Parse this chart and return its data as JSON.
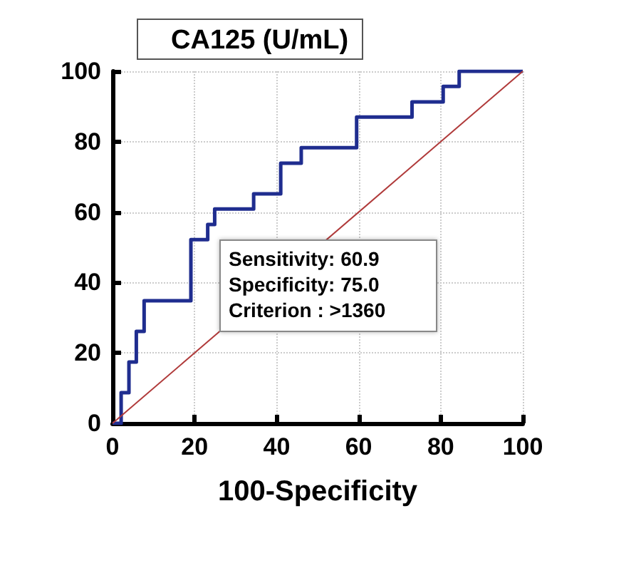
{
  "chart_data": {
    "type": "line",
    "title": "CA125 (U/mL)",
    "xlabel": "100-Specificity",
    "series": [
      {
        "color": "#1f2d8f",
        "line_style": "solid",
        "x": [
          0,
          2.1,
          2.1,
          4,
          4,
          5.8,
          5.8,
          7.7,
          7.7,
          19.1,
          19.1,
          23.2,
          23.2,
          24.9,
          24.9,
          34.4,
          34.4,
          41,
          41,
          46,
          46,
          59.5,
          59.5,
          73,
          73,
          80.6,
          80.6,
          84.5,
          84.5,
          100
        ],
        "values": [
          0,
          0,
          8.7,
          8.7,
          17.4,
          17.4,
          26.1,
          26.1,
          34.8,
          34.8,
          52.2,
          52.2,
          56.5,
          56.5,
          60.9,
          60.9,
          65.2,
          65.2,
          73.9,
          73.9,
          78.3,
          78.3,
          87,
          87,
          91.3,
          91.3,
          95.7,
          95.7,
          100,
          100
        ]
      },
      {
        "color": "#b03a3a",
        "line_style": "solid",
        "x": [
          0,
          100
        ],
        "values": [
          0,
          100
        ]
      }
    ],
    "annotations": [
      "Sensitivity: 60.9",
      "Specificity: 75.0",
      "Criterion : >1360"
    ],
    "xlim": [
      0,
      100
    ],
    "xticks": [
      0,
      20,
      40,
      60,
      80,
      100
    ],
    "ylim": [
      0,
      100
    ],
    "yticks": [
      0,
      20,
      40,
      60,
      80,
      100
    ],
    "grid": true,
    "marker": "none"
  }
}
